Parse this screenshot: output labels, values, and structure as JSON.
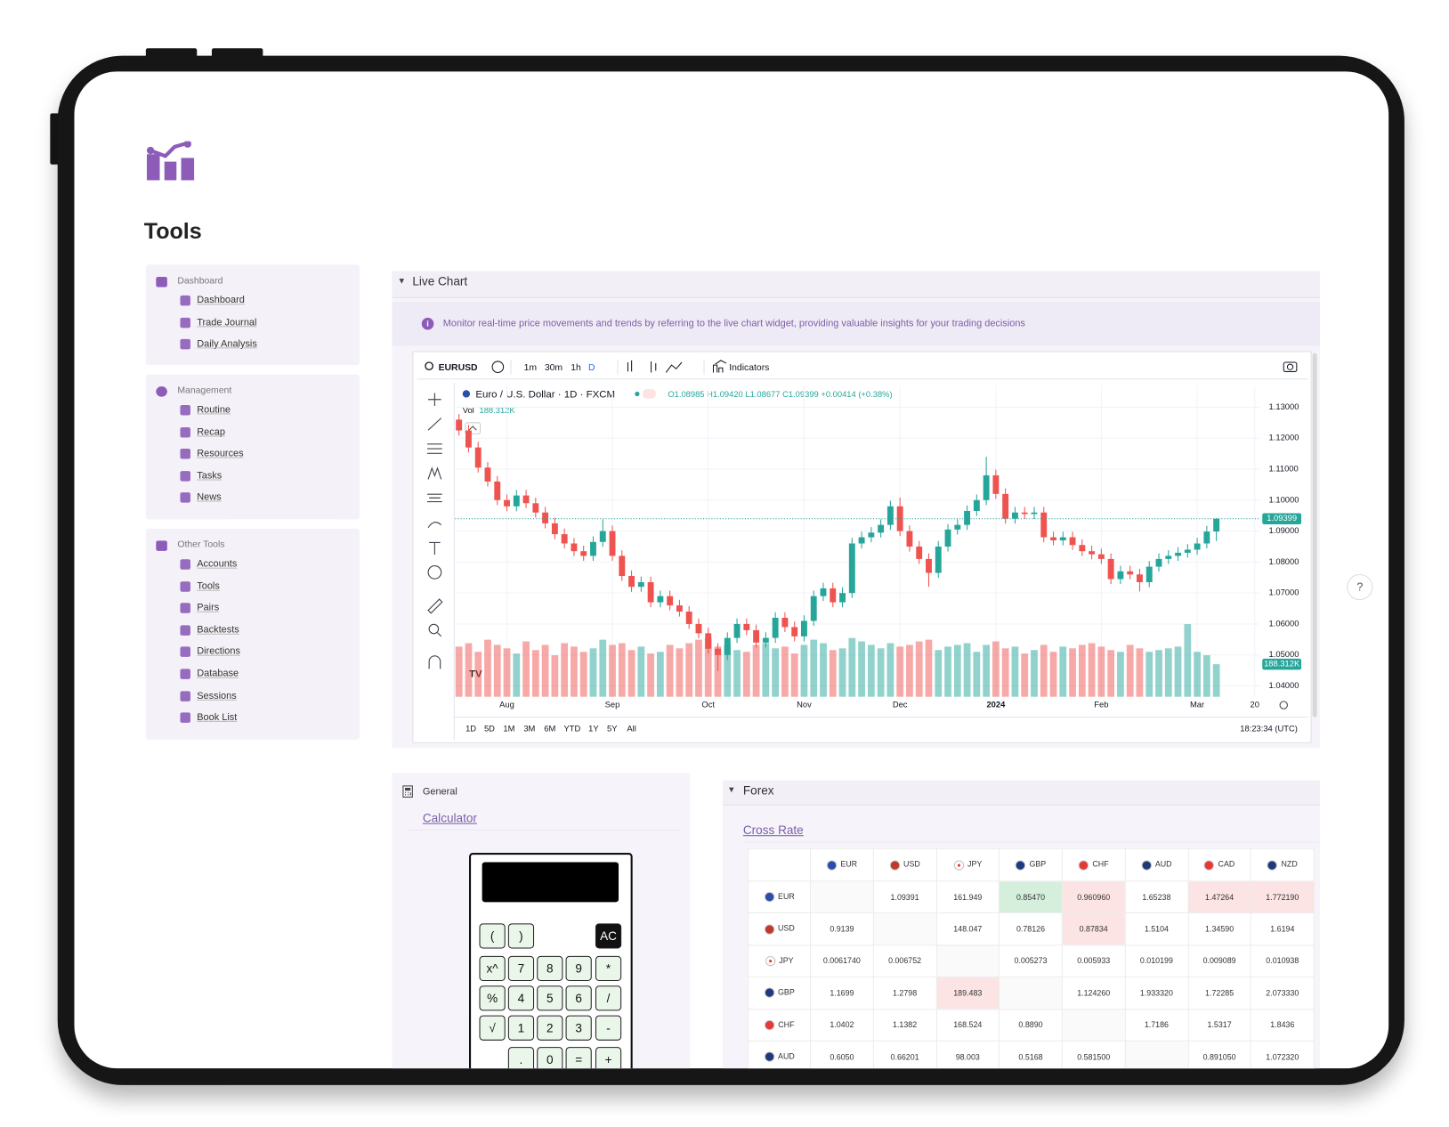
{
  "page": {
    "title": "Tools"
  },
  "sidebar": [
    {
      "heading": "Dashboard",
      "items": [
        "Dashboard",
        "Trade Journal",
        "Daily Analysis"
      ]
    },
    {
      "heading": "Management",
      "items": [
        "Routine",
        "Recap",
        "Resources",
        "Tasks",
        "News"
      ]
    },
    {
      "heading": "Other Tools",
      "items": [
        "Accounts",
        "Tools",
        "Pairs",
        "Backtests",
        "Directions",
        "Database",
        "Sessions",
        "Book List"
      ]
    }
  ],
  "live_chart": {
    "heading": "Live Chart",
    "info": "Monitor real-time price movements and trends by referring to the live chart widget, providing valuable insights for your trading decisions",
    "symbol": "EURUSD",
    "intervals": [
      "1m",
      "30m",
      "1h",
      "D"
    ],
    "indicators": "Indicators",
    "series_title": "Euro / U.S. Dollar · 1D · FXCM",
    "ohlc_label": "O1.08985 H1.09420 L1.08677 C1.09399 +0.00414 (+0.38%)",
    "volume_title": "Vol",
    "volume_value": "188.312K",
    "ranges": [
      "1D",
      "5D",
      "1M",
      "3M",
      "6M",
      "YTD",
      "1Y",
      "5Y",
      "All"
    ],
    "clock": "18:23:34 (UTC)"
  },
  "chart_data": {
    "type": "candlestick",
    "open": [
      1.126,
      1.1225,
      1.117,
      1.1105,
      1.106,
      1.1,
      1.098,
      1.1015,
      1.099,
      1.096,
      1.0925,
      1.089,
      1.086,
      1.0835,
      1.082,
      1.0865,
      1.09,
      1.082,
      1.0755,
      1.072,
      1.0735,
      1.067,
      1.069,
      1.066,
      1.064,
      1.06,
      1.057,
      1.052,
      1.05,
      1.0555,
      1.06,
      1.058,
      1.054,
      1.0555,
      1.062,
      1.059,
      1.056,
      1.061,
      1.069,
      1.0715,
      1.067,
      1.07,
      1.086,
      1.088,
      1.0895,
      1.092,
      1.098,
      1.09,
      1.085,
      1.081,
      1.0765,
      1.085,
      1.0905,
      1.092,
      1.0965,
      1.1,
      1.108,
      1.102,
      1.094,
      1.096,
      1.0955,
      1.096,
      1.088,
      1.087,
      1.088,
      1.0855,
      1.0835,
      1.0825,
      1.081,
      1.0745,
      1.077,
      1.076,
      1.0735,
      1.0785,
      1.081,
      1.082,
      1.083,
      1.084,
      1.086,
      1.08985
    ],
    "high": [
      1.1278,
      1.1243,
      1.1188,
      1.1123,
      1.1078,
      1.1018,
      1.1033,
      1.1033,
      1.1008,
      1.0978,
      1.0943,
      1.0908,
      1.0878,
      1.0853,
      1.0883,
      1.0938,
      1.0918,
      1.0838,
      1.0773,
      1.0753,
      1.0753,
      1.0708,
      1.0708,
      1.0678,
      1.0658,
      1.0618,
      1.0588,
      1.0538,
      1.0573,
      1.0618,
      1.0618,
      1.0598,
      1.0573,
      1.0638,
      1.0638,
      1.0608,
      1.0628,
      1.0708,
      1.0733,
      1.0733,
      1.0718,
      1.0878,
      1.0898,
      1.0913,
      1.0938,
      1.0998,
      1.1008,
      1.0918,
      1.0868,
      1.0828,
      1.0868,
      1.0923,
      1.0938,
      1.0983,
      1.1018,
      1.114,
      1.1098,
      1.1038,
      1.0978,
      1.0978,
      1.0978,
      1.0978,
      1.0898,
      1.0898,
      1.0898,
      1.0873,
      1.0853,
      1.0843,
      1.0828,
      1.0788,
      1.0788,
      1.0778,
      1.0803,
      1.0828,
      1.0838,
      1.0848,
      1.0858,
      1.0878,
      1.0917,
      1.0942
    ],
    "low": [
      1.1209,
      1.1154,
      1.1089,
      1.1044,
      1.0984,
      1.0964,
      1.0964,
      1.0974,
      1.0944,
      1.0909,
      1.0874,
      1.0844,
      1.0819,
      1.0804,
      1.0804,
      1.0849,
      1.0804,
      1.0739,
      1.0704,
      1.0704,
      1.0654,
      1.0654,
      1.0644,
      1.0624,
      1.0584,
      1.0554,
      1.0504,
      1.0448,
      1.0484,
      1.0539,
      1.0564,
      1.0524,
      1.0524,
      1.0539,
      1.0574,
      1.0544,
      1.0544,
      1.0594,
      1.0674,
      1.0654,
      1.0654,
      1.0684,
      1.0844,
      1.0864,
      1.0879,
      1.0904,
      1.0884,
      1.0834,
      1.0794,
      1.072,
      1.0749,
      1.0834,
      1.0889,
      1.0904,
      1.0949,
      1.0984,
      1.1004,
      1.0924,
      1.0924,
      1.0939,
      1.0939,
      1.0864,
      1.0854,
      1.0854,
      1.0839,
      1.0819,
      1.0809,
      1.0794,
      1.0729,
      1.0729,
      1.0744,
      1.0705,
      1.0719,
      1.0769,
      1.0794,
      1.0804,
      1.0814,
      1.0824,
      1.0844,
      1.08677
    ],
    "close": [
      1.1225,
      1.117,
      1.1105,
      1.106,
      1.1,
      1.098,
      1.1015,
      1.099,
      1.096,
      1.0925,
      1.089,
      1.086,
      1.0835,
      1.082,
      1.0865,
      1.09,
      1.082,
      1.0755,
      1.072,
      1.0735,
      1.067,
      1.069,
      1.066,
      1.064,
      1.06,
      1.057,
      1.052,
      1.05,
      1.0555,
      1.06,
      1.058,
      1.054,
      1.0555,
      1.062,
      1.059,
      1.056,
      1.061,
      1.069,
      1.0715,
      1.067,
      1.07,
      1.086,
      1.088,
      1.0895,
      1.092,
      1.098,
      1.09,
      1.085,
      1.081,
      1.0765,
      1.085,
      1.0905,
      1.092,
      1.0965,
      1.1,
      1.108,
      1.102,
      1.094,
      1.096,
      1.0955,
      1.096,
      1.088,
      1.087,
      1.088,
      1.0855,
      1.0835,
      1.0825,
      1.081,
      1.0745,
      1.077,
      1.076,
      1.0735,
      1.0785,
      1.081,
      1.082,
      1.083,
      1.084,
      1.086,
      1.08985,
      1.09399
    ],
    "volume": [
      290,
      310,
      260,
      330,
      300,
      280,
      250,
      320,
      270,
      300,
      240,
      310,
      290,
      260,
      280,
      330,
      300,
      310,
      270,
      290,
      250,
      260,
      300,
      280,
      310,
      330,
      340,
      290,
      300,
      270,
      260,
      300,
      310,
      280,
      290,
      250,
      300,
      330,
      310,
      270,
      280,
      340,
      320,
      300,
      280,
      310,
      290,
      300,
      320,
      330,
      270,
      290,
      300,
      310,
      260,
      300,
      320,
      280,
      290,
      250,
      270,
      300,
      260,
      290,
      280,
      300,
      310,
      290,
      270,
      260,
      300,
      280,
      260,
      270,
      280,
      290,
      420,
      260,
      240,
      188.312
    ],
    "xlim": [
      -0.4,
      83.5
    ],
    "xticks": [
      {
        "value": 5,
        "label": "Aug"
      },
      {
        "value": 16,
        "label": "Sep"
      },
      {
        "value": 26,
        "label": "Oct"
      },
      {
        "value": 36,
        "label": "Nov"
      },
      {
        "value": 46,
        "label": "Dec"
      },
      {
        "value": 56,
        "label": "2024"
      },
      {
        "value": 67,
        "label": "Feb"
      },
      {
        "value": 77,
        "label": "Mar"
      },
      {
        "value": 83,
        "label": "20"
      }
    ],
    "ylim": [
      1.0365,
      1.137
    ],
    "yticks": [
      {
        "value": 1.13,
        "label": "1.13000"
      },
      {
        "value": 1.12,
        "label": "1.12000"
      },
      {
        "value": 1.11,
        "label": "1.11000"
      },
      {
        "value": 1.1,
        "label": "1.10000"
      },
      {
        "value": 1.09,
        "label": "1.09000"
      },
      {
        "value": 1.08,
        "label": "1.08000"
      },
      {
        "value": 1.07,
        "label": "1.07000"
      },
      {
        "value": 1.06,
        "label": "1.06000"
      },
      {
        "value": 1.05,
        "label": "1.05000"
      },
      {
        "value": 1.04,
        "label": "1.04000"
      }
    ],
    "vol_lim": [
      0,
      1800
    ],
    "grid": true,
    "colors": {
      "up": "#26a69a",
      "down": "#ef5350"
    },
    "price_label": "1.09399",
    "volume_label": "188.312K"
  },
  "general": {
    "heading": "General",
    "link": "Calculator",
    "keys": [
      [
        "(",
        ")",
        "AC"
      ],
      [
        "x^",
        "7",
        "8",
        "9",
        "*"
      ],
      [
        "%",
        "4",
        "5",
        "6",
        "/"
      ],
      [
        "√",
        "1",
        "2",
        "3",
        "-"
      ],
      [
        ".",
        "0",
        "=",
        "+"
      ]
    ]
  },
  "forex": {
    "heading": "Forex",
    "link": "Cross Rate",
    "columns": [
      "EUR",
      "USD",
      "JPY",
      "GBP",
      "CHF",
      "AUD",
      "CAD",
      "NZD"
    ],
    "tone_colors": {
      "up": "#d5efdc",
      "down": "#fbe4e3"
    },
    "rows": [
      {
        "label": "EUR",
        "cells": [
          null,
          "1.09391",
          "161.949",
          {
            "text": "0.85470",
            "tone": "up"
          },
          {
            "text": "0.960960",
            "tone": "down"
          },
          "1.65238",
          {
            "text": "1.47264",
            "tone": "down"
          },
          {
            "text": "1.772190",
            "tone": "down"
          }
        ]
      },
      {
        "label": "USD",
        "cells": [
          "0.9139",
          null,
          "148.047",
          "0.78126",
          {
            "text": "0.87834",
            "tone": "down"
          },
          "1.5104",
          "1.34590",
          "1.6194"
        ]
      },
      {
        "label": "JPY",
        "cells": [
          "0.0061740",
          "0.006752",
          null,
          "0.005273",
          "0.005933",
          "0.010199",
          "0.009089",
          "0.010938"
        ]
      },
      {
        "label": "GBP",
        "cells": [
          "1.1699",
          "1.2798",
          {
            "text": "189.483",
            "tone": "down"
          },
          null,
          "1.124260",
          "1.933320",
          "1.72285",
          "2.073330"
        ]
      },
      {
        "label": "CHF",
        "cells": [
          "1.0402",
          "1.1382",
          "168.524",
          "0.8890",
          null,
          "1.7186",
          "1.5317",
          "1.8436"
        ]
      },
      {
        "label": "AUD",
        "cells": [
          "0.6050",
          "0.66201",
          "98.003",
          "0.5168",
          "0.581500",
          null,
          "0.891050",
          "1.072320"
        ]
      }
    ]
  },
  "help": "?"
}
